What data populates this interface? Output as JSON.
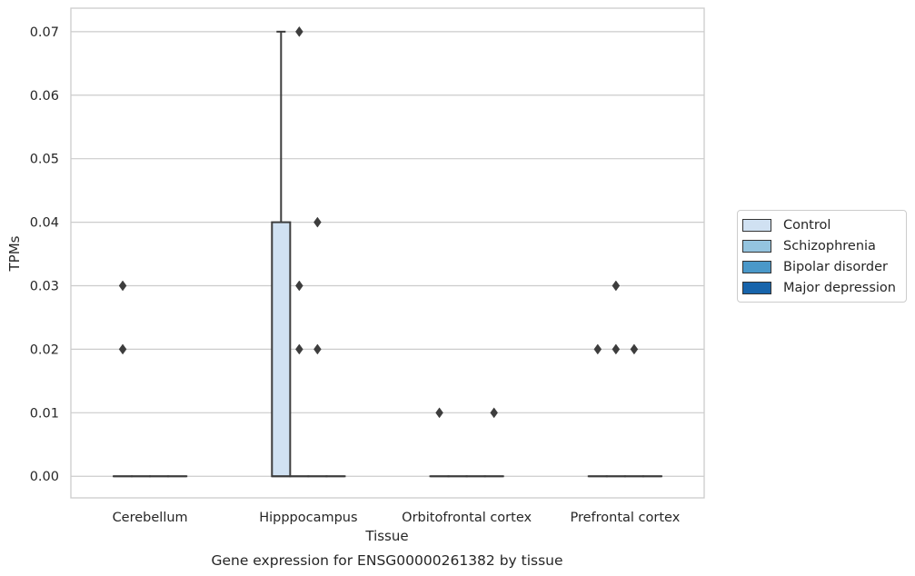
{
  "chart_data": {
    "type": "box",
    "title": "",
    "caption": "Gene expression for ENSG00000261382 by tissue",
    "xlabel": "Tissue",
    "ylabel": "TPMs",
    "ylim": [
      -0.0034,
      0.0737
    ],
    "yticks": [
      "0.00",
      "0.01",
      "0.02",
      "0.03",
      "0.04",
      "0.05",
      "0.06",
      "0.07"
    ],
    "categories": [
      "Cerebellum",
      "Hipppocampus",
      "Orbitofrontal cortex",
      "Prefrontal cortex"
    ],
    "grid": "horizontal",
    "legend_position": "right",
    "series": [
      {
        "name": "Control",
        "color": "#d0e1f2",
        "boxes": [
          {
            "q1": 0,
            "median": 0,
            "q3": 0,
            "whisker_low": 0,
            "whisker_high": 0,
            "outliers": [
              0.02,
              0.03
            ]
          },
          {
            "q1": 0,
            "median": 0,
            "q3": 0.04,
            "whisker_low": 0,
            "whisker_high": 0.07,
            "outliers": []
          },
          {
            "q1": 0,
            "median": 0,
            "q3": 0,
            "whisker_low": 0,
            "whisker_high": 0,
            "outliers": [
              0.01
            ]
          },
          {
            "q1": 0,
            "median": 0,
            "q3": 0,
            "whisker_low": 0,
            "whisker_high": 0,
            "outliers": [
              0.02
            ]
          }
        ]
      },
      {
        "name": "Schizophrenia",
        "color": "#94c4df",
        "boxes": [
          {
            "q1": 0,
            "median": 0,
            "q3": 0,
            "whisker_low": 0,
            "whisker_high": 0,
            "outliers": []
          },
          {
            "q1": 0,
            "median": 0,
            "q3": 0,
            "whisker_low": 0,
            "whisker_high": 0,
            "outliers": [
              0.02,
              0.03,
              0.07
            ]
          },
          {
            "q1": 0,
            "median": 0,
            "q3": 0,
            "whisker_low": 0,
            "whisker_high": 0,
            "outliers": []
          },
          {
            "q1": 0,
            "median": 0,
            "q3": 0,
            "whisker_low": 0,
            "whisker_high": 0,
            "outliers": [
              0.02,
              0.03
            ]
          }
        ]
      },
      {
        "name": "Bipolar disorder",
        "color": "#4a98c9",
        "boxes": [
          {
            "q1": 0,
            "median": 0,
            "q3": 0,
            "whisker_low": 0,
            "whisker_high": 0,
            "outliers": []
          },
          {
            "q1": 0,
            "median": 0,
            "q3": 0,
            "whisker_low": 0,
            "whisker_high": 0,
            "outliers": [
              0.02,
              0.04
            ]
          },
          {
            "q1": 0,
            "median": 0,
            "q3": 0,
            "whisker_low": 0,
            "whisker_high": 0,
            "outliers": []
          },
          {
            "q1": 0,
            "median": 0,
            "q3": 0,
            "whisker_low": 0,
            "whisker_high": 0,
            "outliers": [
              0.02
            ]
          }
        ]
      },
      {
        "name": "Major depression",
        "color": "#1764ab",
        "boxes": [
          {
            "q1": 0,
            "median": 0,
            "q3": 0,
            "whisker_low": 0,
            "whisker_high": 0,
            "outliers": []
          },
          {
            "q1": 0,
            "median": 0,
            "q3": 0,
            "whisker_low": 0,
            "whisker_high": 0,
            "outliers": []
          },
          {
            "q1": 0,
            "median": 0,
            "q3": 0,
            "whisker_low": 0,
            "whisker_high": 0,
            "outliers": [
              0.01
            ]
          },
          {
            "q1": 0,
            "median": 0,
            "q3": 0,
            "whisker_low": 0,
            "whisker_high": 0,
            "outliers": []
          }
        ]
      }
    ]
  }
}
